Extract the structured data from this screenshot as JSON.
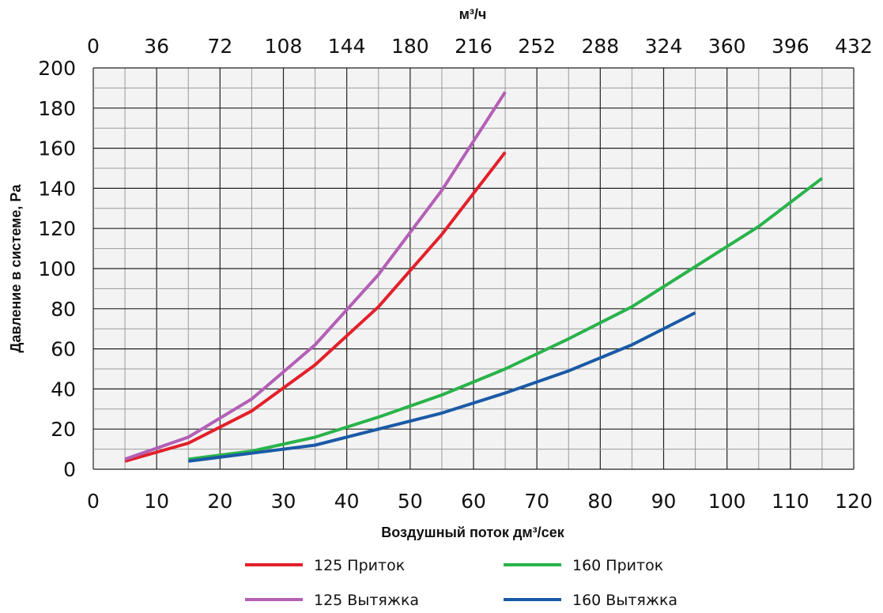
{
  "chart_data": {
    "type": "line",
    "xlabel": "Воздушный поток дм³/сек",
    "x2label": "м³/ч",
    "ylabel": "Давление в системе, Pa",
    "xlim": [
      0,
      120
    ],
    "ylim": [
      0,
      200
    ],
    "x_ticks": [
      "0",
      "10",
      "20",
      "30",
      "40",
      "50",
      "60",
      "70",
      "80",
      "90",
      "100",
      "110",
      "120"
    ],
    "x2_ticks": [
      "0",
      "36",
      "72",
      "108",
      "144",
      "180",
      "216",
      "252",
      "288",
      "324",
      "360",
      "396",
      "432"
    ],
    "y_ticks": [
      "0",
      "20",
      "40",
      "60",
      "80",
      "100",
      "120",
      "140",
      "160",
      "180",
      "200"
    ],
    "grid": true,
    "legend_position": "bottom",
    "series": [
      {
        "name": "125 Приток",
        "color": "#e3202a",
        "x": [
          5,
          15,
          25,
          35,
          45,
          55,
          65
        ],
        "y": [
          4,
          13,
          29,
          52,
          81,
          117,
          158
        ]
      },
      {
        "name": "125 Вытяжка",
        "color": "#b45fb6",
        "x": [
          5,
          15,
          25,
          35,
          45,
          55,
          65
        ],
        "y": [
          5,
          16,
          35,
          62,
          97,
          139,
          188
        ]
      },
      {
        "name": "160 Приток",
        "color": "#29b34a",
        "x": [
          15,
          25,
          35,
          45,
          55,
          65,
          75,
          85,
          95,
          105,
          115
        ],
        "y": [
          5,
          9,
          16,
          26,
          37,
          50,
          65,
          81,
          101,
          121,
          145
        ]
      },
      {
        "name": "160 Вытяжка",
        "color": "#1a5aa6",
        "x": [
          15,
          25,
          35,
          45,
          55,
          65,
          75,
          85,
          95
        ],
        "y": [
          4,
          8,
          12,
          20,
          28,
          38,
          49,
          62,
          78
        ]
      }
    ]
  }
}
